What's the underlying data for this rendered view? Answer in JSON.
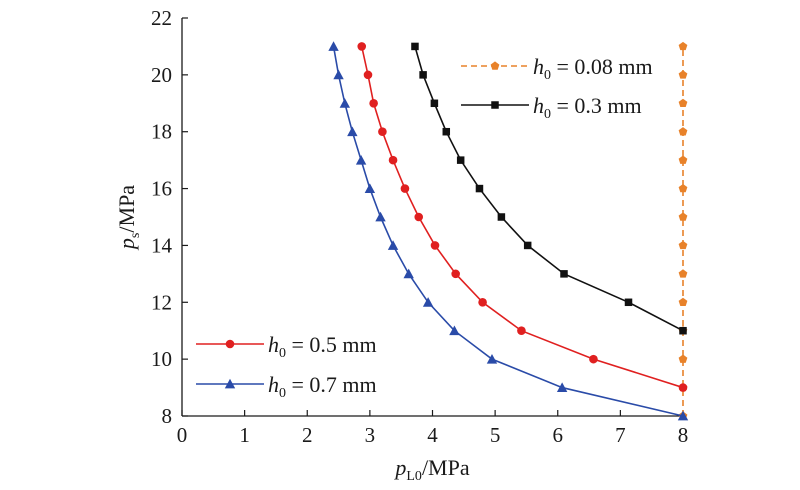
{
  "chart_data": {
    "type": "line",
    "xlabel": {
      "main": "p",
      "sub": "L0",
      "unit": "/MPa"
    },
    "ylabel": {
      "main": "p",
      "sub": "s",
      "unit": "/MPa"
    },
    "xlim": [
      0,
      8
    ],
    "ylim": [
      8,
      22
    ],
    "xticks": [
      "0",
      "1",
      "2",
      "3",
      "4",
      "5",
      "6",
      "7",
      "8"
    ],
    "yticks": [
      "8",
      "10",
      "12",
      "14",
      "16",
      "18",
      "20",
      "22"
    ],
    "grid": false,
    "series": [
      {
        "legend": {
          "main": "h",
          "sub": "0",
          "value": " = 0.08 mm"
        },
        "color": "#E8822A",
        "marker": "pentagon",
        "line_style": "dashed",
        "points": [
          [
            8,
            8
          ],
          [
            8,
            9
          ],
          [
            8,
            10
          ],
          [
            8,
            11
          ],
          [
            8,
            12
          ],
          [
            8,
            13
          ],
          [
            8,
            14
          ],
          [
            8,
            15
          ],
          [
            8,
            16
          ],
          [
            8,
            17
          ],
          [
            8,
            18
          ],
          [
            8,
            19
          ],
          [
            8,
            20
          ],
          [
            8,
            21
          ]
        ]
      },
      {
        "legend": {
          "main": "h",
          "sub": "0",
          "value": " = 0.3 mm"
        },
        "color": "#111111",
        "marker": "square",
        "line_style": "solid",
        "points": [
          [
            3.72,
            21
          ],
          [
            3.85,
            20
          ],
          [
            4.03,
            19
          ],
          [
            4.22,
            18
          ],
          [
            4.45,
            17
          ],
          [
            4.75,
            16
          ],
          [
            5.1,
            15
          ],
          [
            5.52,
            14
          ],
          [
            6.1,
            13
          ],
          [
            7.13,
            12
          ],
          [
            8,
            11
          ]
        ]
      },
      {
        "legend": {
          "main": "h",
          "sub": "0",
          "value": " = 0.5 mm"
        },
        "color": "#E02020",
        "marker": "circle",
        "line_style": "solid",
        "points": [
          [
            2.87,
            21
          ],
          [
            2.97,
            20
          ],
          [
            3.06,
            19
          ],
          [
            3.2,
            18
          ],
          [
            3.37,
            17
          ],
          [
            3.56,
            16
          ],
          [
            3.78,
            15
          ],
          [
            4.04,
            14
          ],
          [
            4.37,
            13
          ],
          [
            4.8,
            12
          ],
          [
            5.42,
            11
          ],
          [
            6.57,
            10
          ],
          [
            8,
            9
          ]
        ]
      },
      {
        "legend": {
          "main": "h",
          "sub": "0",
          "value": " = 0.7 mm"
        },
        "color": "#2A4BA8",
        "marker": "triangle",
        "line_style": "solid",
        "points": [
          [
            2.42,
            21
          ],
          [
            2.5,
            20
          ],
          [
            2.6,
            19
          ],
          [
            2.72,
            18
          ],
          [
            2.86,
            17
          ],
          [
            3.0,
            16
          ],
          [
            3.17,
            15
          ],
          [
            3.37,
            14
          ],
          [
            3.62,
            13
          ],
          [
            3.93,
            12
          ],
          [
            4.35,
            11
          ],
          [
            4.95,
            10
          ],
          [
            6.07,
            9
          ],
          [
            8,
            8
          ]
        ]
      }
    ],
    "legends": [
      {
        "series_index": 0,
        "position": "top-right"
      },
      {
        "series_index": 1,
        "position": "top-right"
      },
      {
        "series_index": 2,
        "position": "bottom-left"
      },
      {
        "series_index": 3,
        "position": "bottom-left"
      }
    ]
  }
}
